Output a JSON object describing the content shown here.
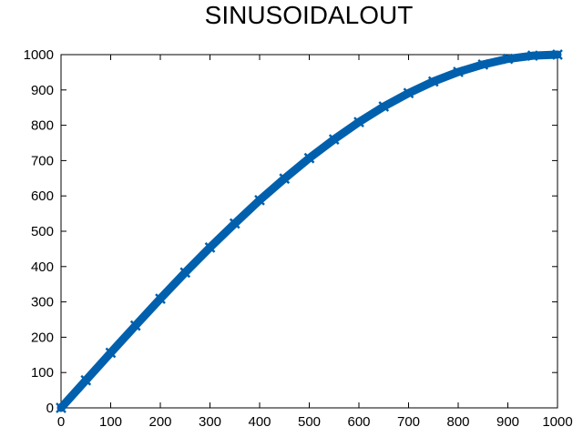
{
  "chart_data": {
    "type": "scatter",
    "title": "SINUSOIDALOUT",
    "xlabel": "",
    "ylabel": "",
    "xlim": [
      0,
      1000
    ],
    "ylim": [
      0,
      1000
    ],
    "xticks": [
      0,
      100,
      200,
      300,
      400,
      500,
      600,
      700,
      800,
      900,
      1000
    ],
    "yticks": [
      0,
      100,
      200,
      300,
      400,
      500,
      600,
      700,
      800,
      900,
      1000
    ],
    "grid": false,
    "marker": "x",
    "color": "#0060ad",
    "series": [
      {
        "x": [
          0,
          50,
          100,
          150,
          200,
          250,
          300,
          350,
          400,
          450,
          500,
          550,
          600,
          650,
          700,
          750,
          800,
          850,
          900,
          950,
          1000
        ],
        "y": [
          0,
          78,
          156,
          233,
          309,
          383,
          454,
          522,
          588,
          649,
          707,
          760,
          809,
          853,
          891,
          924,
          951,
          972,
          988,
          997,
          1000
        ]
      }
    ]
  }
}
